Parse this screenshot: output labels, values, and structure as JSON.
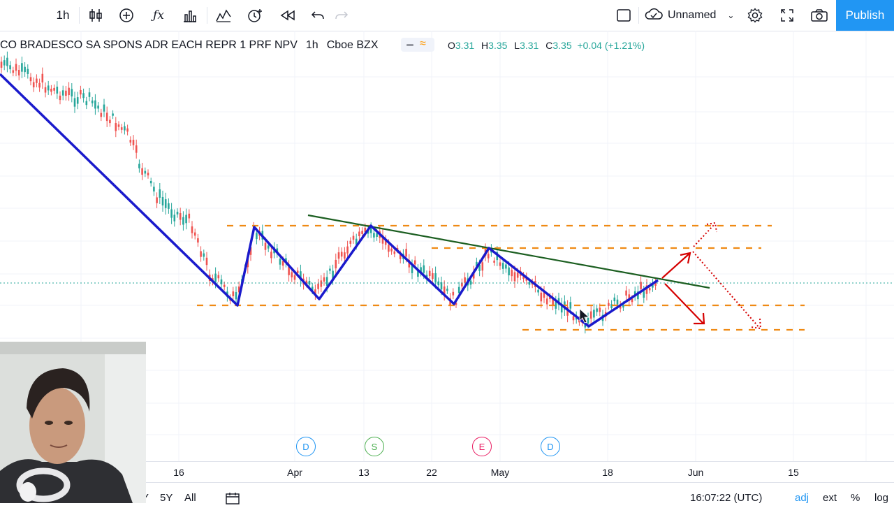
{
  "toolbar": {
    "interval": "1h",
    "layout_name": "Unnamed",
    "publish_label": "Publish"
  },
  "legend": {
    "symbol": "CO BRADESCO SA SPONS ADR EACH REPR 1 PRF NPV",
    "interval": "1h",
    "exchange": "Cboe BZX",
    "o_label": "O",
    "o_value": "3.31",
    "h_label": "H",
    "h_value": "3.35",
    "l_label": "L",
    "l_value": "3.31",
    "c_label": "C",
    "c_value": "3.35",
    "change": "+0.04 (+1.21%)"
  },
  "events": [
    {
      "letter": "D",
      "color": "#2196f3"
    },
    {
      "letter": "S",
      "color": "#4caf50"
    },
    {
      "letter": "E",
      "color": "#e91e63"
    },
    {
      "letter": "D",
      "color": "#2196f3"
    }
  ],
  "time_axis": {
    "ticks": [
      "16",
      "Apr",
      "13",
      "22",
      "May",
      "18",
      "Jun",
      "15"
    ]
  },
  "bottom_bar": {
    "ranges": [
      "Y",
      "5Y",
      "All"
    ],
    "clock": "16:07:22 (UTC)",
    "options": [
      "adj",
      "ext",
      "%",
      "log"
    ]
  },
  "colors": {
    "accent": "#2196f3",
    "up": "#26a69a",
    "down": "#ef5350",
    "zigzag": "#1a1acc",
    "trendline": "#1b5e20",
    "levels": "#ef8a14",
    "arrows": "#d50000"
  },
  "chart_data": {
    "type": "candlestick",
    "note_lines": [
      "zigzag",
      "descending trendline",
      "horizontal levels",
      "projection arrows"
    ]
  }
}
